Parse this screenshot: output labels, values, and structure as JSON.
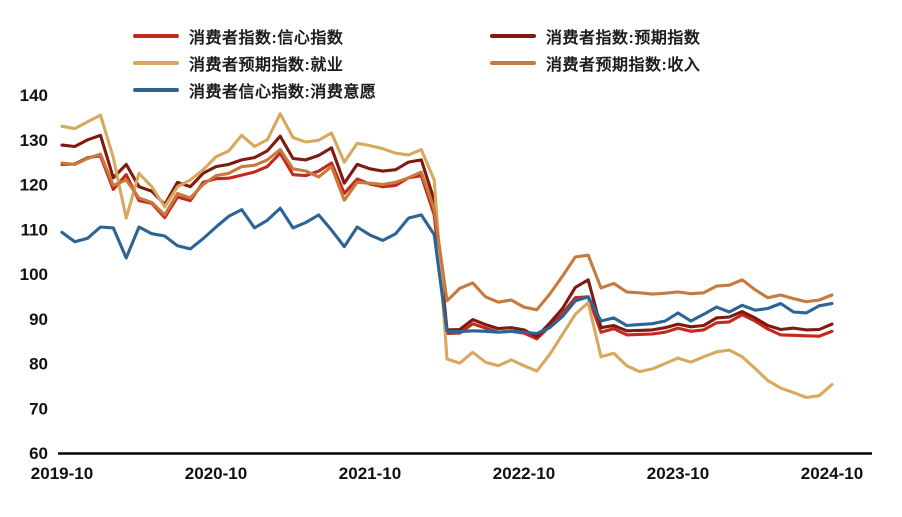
{
  "chart_data": {
    "type": "line",
    "title": "",
    "x_start": "2019-10",
    "x_end": "2024-10",
    "x_unit": "month",
    "x_tick_labels": [
      "2019-10",
      "2020-10",
      "2021-10",
      "2022-10",
      "2023-10",
      "2024-10"
    ],
    "x_tick_month_index": [
      0,
      12,
      24,
      36,
      48,
      60
    ],
    "ylim": [
      60,
      140
    ],
    "yticks": [
      60,
      70,
      80,
      90,
      100,
      110,
      120,
      130,
      140
    ],
    "grid": false,
    "legend_position": "top",
    "axis_color": "#000000",
    "series": [
      {
        "name": "消费者指数:信心指数",
        "color": "#c5281c",
        "values": [
          124.5,
          124.6,
          126.0,
          126.4,
          118.9,
          122.2,
          116.4,
          115.8,
          112.6,
          117.2,
          116.4,
          120.5,
          121.3,
          121.4,
          122.1,
          122.8,
          124.0,
          127.0,
          122.2,
          122.0,
          123.0,
          124.8,
          118.0,
          121.2,
          120.1,
          119.5,
          119.8,
          121.5,
          122.0,
          113.2,
          86.7,
          86.8,
          88.9,
          87.9,
          87.0,
          87.2,
          86.8,
          85.5,
          88.3,
          91.2,
          94.7,
          94.9,
          87.0,
          87.8,
          86.4,
          86.5,
          86.6,
          87.0,
          87.9,
          87.2,
          87.5,
          89.1,
          89.3,
          90.9,
          89.5,
          87.7,
          86.4,
          86.3,
          86.2,
          86.1,
          87.2
        ]
      },
      {
        "name": "消费者指数:预期指数",
        "color": "#7e1a10",
        "values": [
          128.8,
          128.5,
          130.0,
          131.0,
          121.5,
          124.5,
          119.5,
          118.5,
          115.5,
          120.5,
          119.5,
          122.5,
          124.0,
          124.5,
          125.5,
          126.0,
          127.5,
          130.8,
          125.8,
          125.5,
          126.5,
          128.2,
          120.3,
          124.5,
          123.5,
          123.0,
          123.3,
          125.0,
          125.5,
          116.5,
          87.5,
          87.6,
          89.8,
          88.7,
          87.8,
          88.0,
          87.5,
          86.0,
          89.0,
          92.3,
          97.0,
          98.7,
          88.0,
          88.5,
          87.3,
          87.4,
          87.5,
          88.0,
          88.8,
          88.2,
          88.5,
          90.2,
          90.4,
          91.6,
          90.2,
          88.5,
          87.6,
          87.9,
          87.5,
          87.6,
          88.8
        ]
      },
      {
        "name": "消费者预期指数:就业",
        "color": "#d9a85f",
        "values": [
          133.0,
          132.5,
          134.0,
          135.5,
          126.0,
          112.5,
          122.5,
          119.5,
          115.0,
          119.5,
          121.0,
          123.3,
          126.2,
          127.5,
          131.0,
          128.5,
          130.0,
          135.8,
          130.5,
          129.5,
          129.9,
          131.5,
          125.0,
          129.2,
          128.7,
          128.0,
          127.0,
          126.6,
          127.8,
          121.0,
          81.0,
          80.1,
          82.5,
          80.3,
          79.5,
          80.8,
          79.5,
          78.3,
          82.0,
          86.5,
          91.0,
          93.6,
          81.5,
          82.3,
          79.5,
          78.2,
          78.8,
          80.0,
          81.2,
          80.3,
          81.5,
          82.6,
          83.0,
          81.5,
          78.9,
          76.2,
          74.5,
          73.5,
          72.4,
          72.8,
          75.3
        ]
      },
      {
        "name": "消费者预期指数:收入",
        "color": "#c87a3e",
        "values": [
          124.8,
          124.5,
          125.8,
          126.8,
          119.8,
          121.0,
          117.0,
          116.0,
          113.2,
          118.0,
          117.0,
          120.0,
          122.0,
          122.5,
          124.0,
          124.3,
          125.5,
          127.8,
          123.5,
          123.0,
          121.7,
          124.0,
          116.5,
          120.5,
          120.3,
          120.0,
          120.5,
          121.5,
          122.8,
          114.5,
          94.0,
          96.8,
          98.0,
          94.9,
          93.7,
          94.2,
          92.6,
          92.0,
          95.5,
          99.5,
          103.8,
          104.2,
          96.9,
          97.9,
          96.0,
          95.8,
          95.5,
          95.7,
          96.0,
          95.6,
          95.8,
          97.3,
          97.5,
          98.7,
          96.5,
          94.7,
          95.3,
          94.5,
          93.8,
          94.2,
          95.3
        ]
      },
      {
        "name": "消费者信心指数:消费意愿",
        "color": "#2c6496",
        "values": [
          109.3,
          107.2,
          108.0,
          110.5,
          110.3,
          103.6,
          110.5,
          109.0,
          108.5,
          106.3,
          105.6,
          107.9,
          110.5,
          112.9,
          114.4,
          110.3,
          112.0,
          114.7,
          110.3,
          111.5,
          113.2,
          109.8,
          106.1,
          110.5,
          108.7,
          107.5,
          109.0,
          112.5,
          113.2,
          108.8,
          87.2,
          87.1,
          87.3,
          87.2,
          87.0,
          87.2,
          87.0,
          86.7,
          88.0,
          90.5,
          94.0,
          94.9,
          89.5,
          90.2,
          88.5,
          88.7,
          88.9,
          89.5,
          91.3,
          89.5,
          91.0,
          92.6,
          91.5,
          93.0,
          91.9,
          92.3,
          93.4,
          91.5,
          91.3,
          92.9,
          93.4
        ]
      }
    ]
  },
  "legend": {
    "column1_series_indexes": [
      0,
      2,
      4
    ],
    "column2_series_indexes": [
      1,
      3
    ]
  }
}
